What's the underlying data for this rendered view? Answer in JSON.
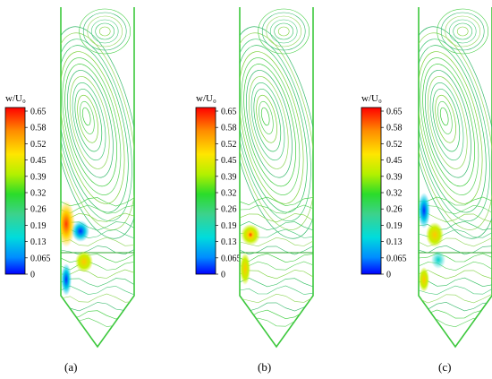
{
  "figure": {
    "legend_title": "w/U₀",
    "legend_ticks": [
      "0.65",
      "0.58",
      "0.52",
      "0.45",
      "0.39",
      "0.32",
      "0.26",
      "0.19",
      "0.13",
      "0.065",
      "0"
    ],
    "colormap": [
      "#ff0000",
      "#ff8c00",
      "#ffe600",
      "#b4f000",
      "#2adc2a",
      "#3cd28c",
      "#00dcdc",
      "#008cff",
      "#0000ff"
    ],
    "panels": [
      {
        "label": "(a)"
      },
      {
        "label": "(b)"
      },
      {
        "label": "(c)"
      }
    ]
  }
}
